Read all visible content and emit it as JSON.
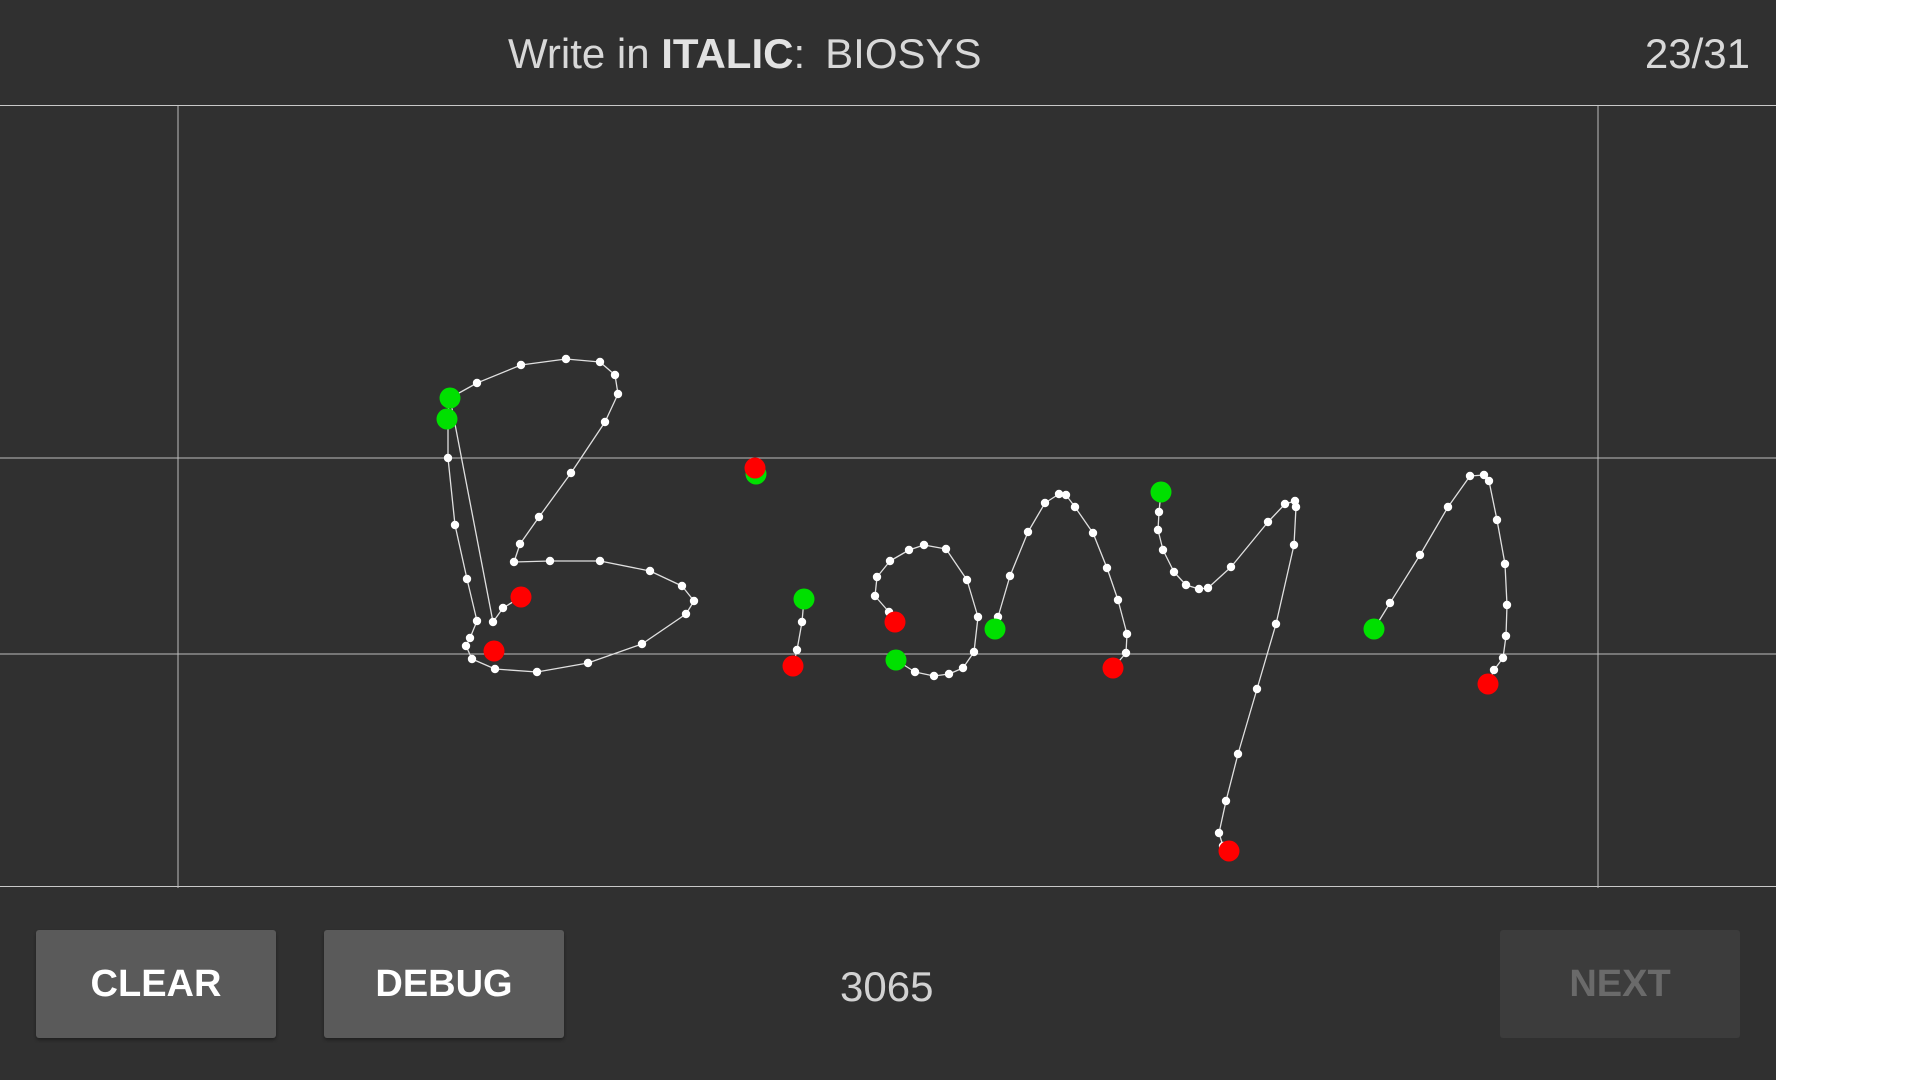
{
  "header": {
    "prompt_prefix": "Write in ",
    "prompt_style": "ITALIC",
    "prompt_colon": ":",
    "target_word": "BIOSYS",
    "progress": "23/31"
  },
  "footer": {
    "clear_label": "CLEAR",
    "debug_label": "DEBUG",
    "count": "3065",
    "next_label": "NEXT",
    "next_enabled": false
  },
  "colors": {
    "background": "#303030",
    "stroke": "#e0e0e0",
    "point": "#ffffff",
    "start_point": "#00e000",
    "end_point": "#ff0000",
    "guide_line": "#bdbdbd"
  }
}
